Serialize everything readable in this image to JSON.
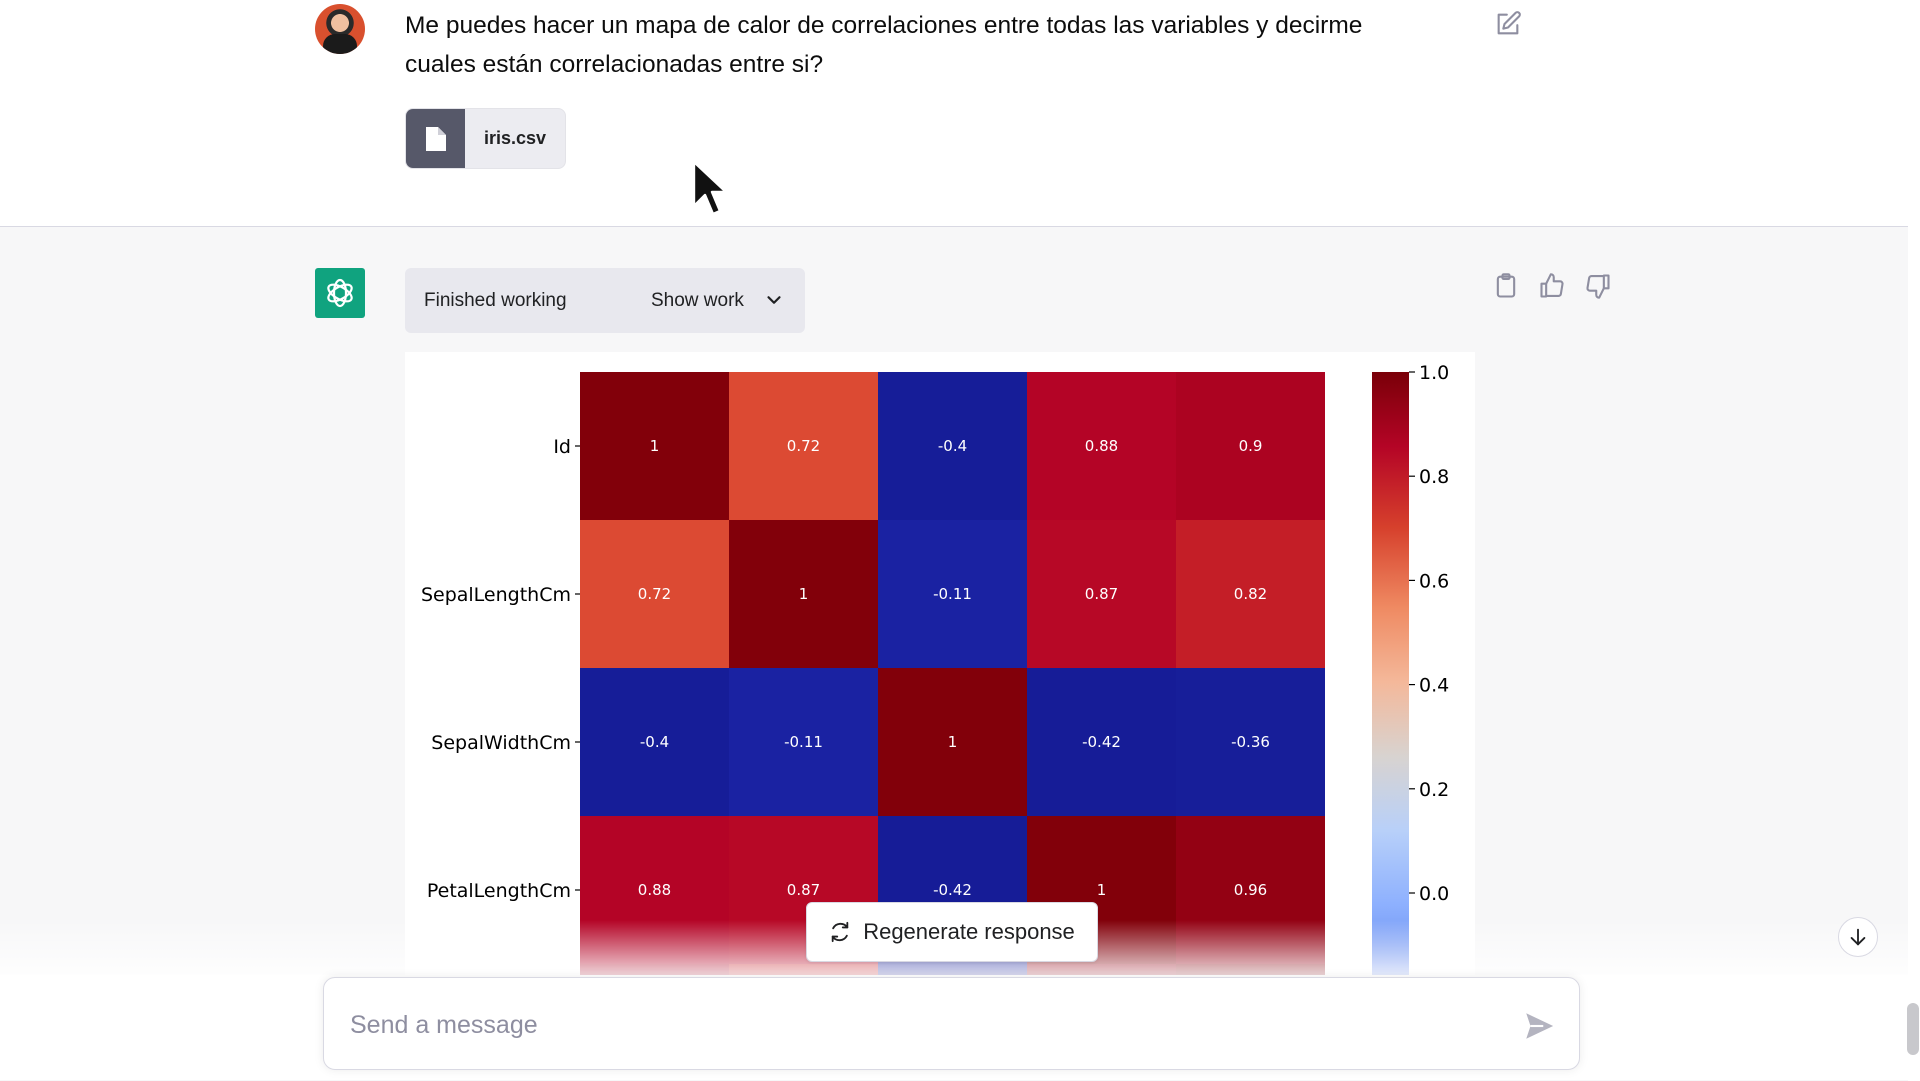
{
  "user_message": {
    "text_line1": "Me puedes hacer un mapa de calor de correlaciones entre todas las variables y decirme",
    "text_line2": "cuales están correlacionadas entre si?",
    "attachment": {
      "file_name": "iris.csv",
      "icon": "file-icon"
    }
  },
  "assistant": {
    "status_label": "Finished working",
    "show_work_label": "Show work",
    "actions": [
      "copy-icon",
      "thumbs-up-icon",
      "thumbs-down-icon"
    ]
  },
  "chart_data": {
    "type": "heatmap",
    "row_labels": [
      "Id",
      "SepalLengthCm",
      "SepalWidthCm",
      "PetalLengthCm"
    ],
    "matrix": [
      [
        1,
        0.72,
        -0.4,
        0.88,
        0.9
      ],
      [
        0.72,
        1,
        -0.11,
        0.87,
        0.82
      ],
      [
        -0.4,
        -0.11,
        1,
        -0.42,
        -0.36
      ],
      [
        0.88,
        0.87,
        -0.42,
        1,
        0.96
      ]
    ],
    "cell_labels": [
      [
        "1",
        "0.72",
        "-0.4",
        "0.88",
        "0.9"
      ],
      [
        "0.72",
        "1",
        "-0.11",
        "0.87",
        "0.82"
      ],
      [
        "-0.4",
        "-0.11",
        "1",
        "-0.42",
        "-0.36"
      ],
      [
        "0.88",
        "0.87",
        "-0.42",
        "1",
        "0.96"
      ]
    ],
    "colorbar_ticks": [
      "1.0",
      "0.8",
      "0.6",
      "0.4",
      "0.2",
      "0.0"
    ],
    "colorbar_values": [
      1.0,
      0.8,
      0.6,
      0.4,
      0.2,
      0.0
    ],
    "colormap": "coolwarm",
    "vmin": -0.42,
    "vmax": 1.0
  },
  "regenerate_label": "Regenerate response",
  "composer": {
    "placeholder": "Send a message"
  },
  "colors": {
    "gpt_green": "#10a37f",
    "assistant_bg": "#f7f7f8",
    "file_icon_bg": "#565869"
  }
}
